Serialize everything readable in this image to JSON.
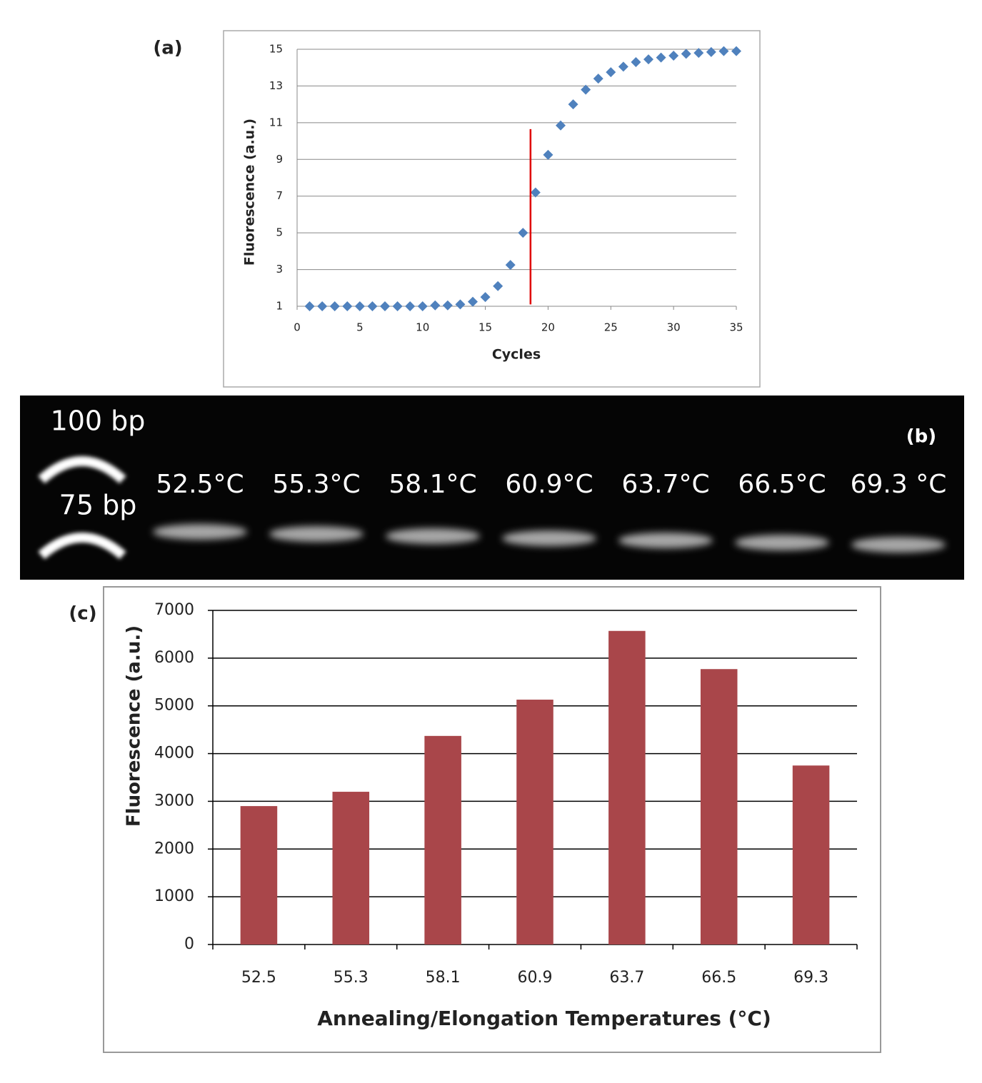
{
  "chart_data": [
    {
      "type": "scatter",
      "panel_label": "(a)",
      "x_label": "Cycles",
      "y_label": "Fluorescence (a.u.)",
      "x": [
        1,
        2,
        3,
        4,
        5,
        6,
        7,
        8,
        9,
        10,
        11,
        12,
        13,
        14,
        15,
        16,
        17,
        18,
        19,
        20,
        21,
        22,
        23,
        24,
        25,
        26,
        27,
        28,
        29,
        30,
        31,
        32,
        33,
        34,
        35
      ],
      "series": [
        {
          "color": "#4f81bd",
          "values": [
            1.0,
            1.0,
            1.0,
            1.0,
            1.0,
            1.0,
            1.0,
            1.0,
            1.0,
            1.0,
            1.05,
            1.05,
            1.1,
            1.25,
            1.5,
            2.1,
            3.25,
            5.0,
            7.2,
            9.25,
            10.85,
            12.0,
            12.8,
            13.4,
            13.75,
            14.05,
            14.3,
            14.45,
            14.55,
            14.65,
            14.75,
            14.8,
            14.85,
            14.9,
            14.9
          ]
        }
      ],
      "vline": {
        "x": 18.6,
        "y": [
          1.1,
          10.65
        ],
        "color": "#e00000"
      },
      "xlim": [
        0,
        35
      ],
      "xticks": [
        0,
        5,
        10,
        15,
        20,
        25,
        30,
        35
      ],
      "ylim": [
        1,
        15
      ],
      "yticks": [
        1,
        3,
        5,
        7,
        9,
        11,
        13,
        15
      ],
      "grid": true
    },
    {
      "type": "bar",
      "panel_label": "(c)",
      "x_label": "Annealing/Elongation Temperatures (°C)",
      "y_label": "Fluorescence (a.u.)",
      "categories": [
        "52.5",
        "55.3",
        "58.1",
        "60.9",
        "63.7",
        "66.5",
        "69.3"
      ],
      "values": [
        2900,
        3200,
        4370,
        5130,
        6570,
        5770,
        3750
      ],
      "color": "#a9464a",
      "ylim": [
        0,
        7000
      ],
      "yticks": [
        0,
        1000,
        2000,
        3000,
        4000,
        5000,
        6000,
        7000
      ],
      "grid": true
    }
  ],
  "gel": {
    "panel_label": "(b)",
    "ladder_labels": [
      "100 bp",
      "75 bp"
    ],
    "lanes": [
      "52.5°C",
      "55.3°C",
      "58.1°C",
      "60.9°C",
      "63.7°C",
      "66.5°C",
      "69.3 °C"
    ]
  }
}
